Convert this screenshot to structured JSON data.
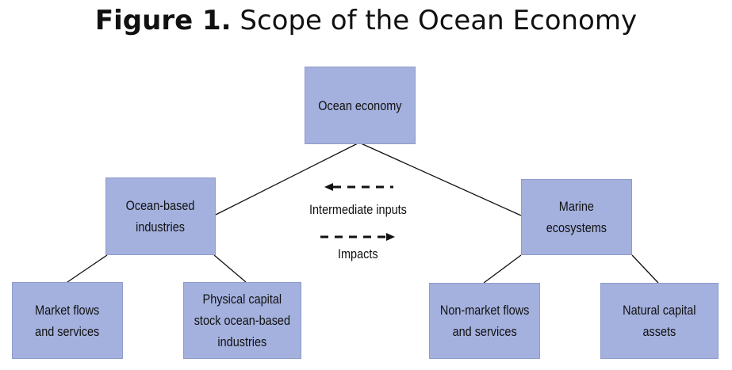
{
  "title": {
    "bold": "Figure 1.",
    "rest": "Scope of the Ocean Economy"
  },
  "nodes": {
    "ocean_economy": "Ocean economy",
    "ocean_based_industries": "Ocean-based\nindustries",
    "marine_ecosystems": "Marine\necosystems",
    "market_flows": "Market flows\nand services",
    "physical_capital": "Physical capital\nstock ocean-based\nindustries",
    "non_market_flows": "Non-market flows\nand services",
    "natural_capital": "Natural capital\nassets"
  },
  "legend": {
    "intermediate_inputs": "Intermediate inputs",
    "impacts": "Impacts"
  }
}
